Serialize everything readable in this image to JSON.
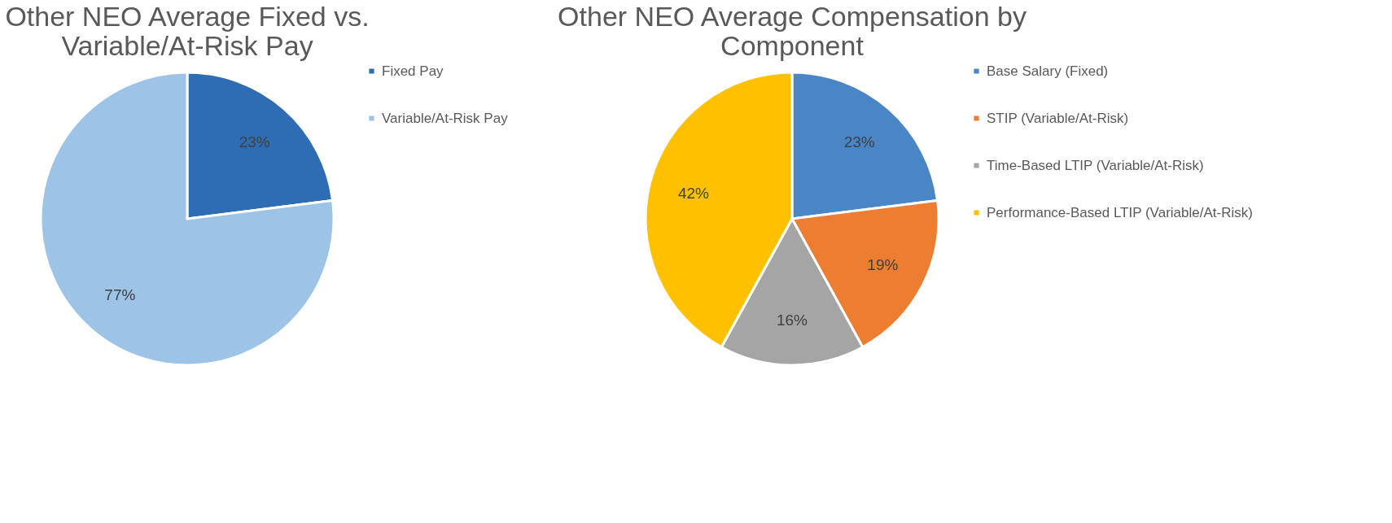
{
  "chart_data": [
    {
      "type": "pie",
      "title": "Other NEO Average Fixed vs. Variable/At-Risk Pay",
      "categories": [
        "Fixed Pay",
        "Variable/At-Risk Pay"
      ],
      "values": [
        23,
        77
      ],
      "colors": [
        "#2e6db4",
        "#9dc3e6"
      ],
      "value_labels": [
        "23%",
        "77%"
      ],
      "legend": "right"
    },
    {
      "type": "pie",
      "title": "Other NEO Average Compensation by Component",
      "categories": [
        "Base Salary (Fixed)",
        "STIP (Variable/At-Risk)",
        "Time-Based LTIP (Variable/At-Risk)",
        "Performance-Based LTIP (Variable/At-Risk)"
      ],
      "values": [
        23,
        19,
        16,
        42
      ],
      "colors": [
        "#4a86c5",
        "#ed7d31",
        "#a5a5a5",
        "#ffc000"
      ],
      "value_labels": [
        "23%",
        "19%",
        "16%",
        "42%"
      ],
      "legend": "right"
    }
  ]
}
